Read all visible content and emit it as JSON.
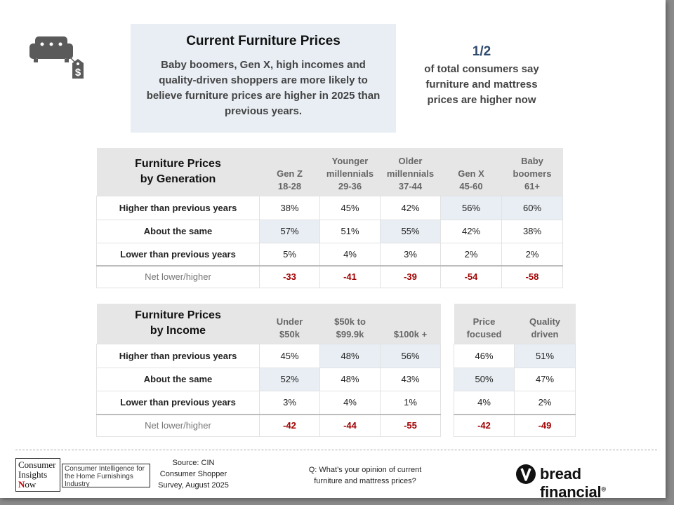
{
  "header": {
    "icon": "sofa-price-tag-icon",
    "title": "Current Furniture Prices",
    "description": "Baby boomers, Gen X, high incomes and quality-driven shoppers are more likely to believe furniture prices are higher in 2025 than previous years.",
    "stat_fraction": "1/2",
    "stat_text": "of total consumers say furniture and mattress prices are higher now"
  },
  "generation_table": {
    "title_line1": "Furniture Prices",
    "title_line2": "by Generation",
    "columns": [
      {
        "line1": "",
        "line2": "Gen Z",
        "line3": "18-28"
      },
      {
        "line1": "Younger",
        "line2": "millennials",
        "line3": "29-36"
      },
      {
        "line1": "Older",
        "line2": "millennials",
        "line3": "37-44"
      },
      {
        "line1": "",
        "line2": "Gen X",
        "line3": "45-60"
      },
      {
        "line1": "Baby",
        "line2": "boomers",
        "line3": "61+"
      }
    ],
    "rows": [
      {
        "label": "Higher than previous years",
        "values": [
          "38%",
          "45%",
          "42%",
          "56%",
          "60%"
        ]
      },
      {
        "label": "About the same",
        "values": [
          "57%",
          "51%",
          "55%",
          "42%",
          "38%"
        ]
      },
      {
        "label": "Lower than previous years",
        "values": [
          "5%",
          "4%",
          "3%",
          "2%",
          "2%"
        ]
      },
      {
        "label": "Net lower/higher",
        "values": [
          "-33",
          "-41",
          "-39",
          "-54",
          "-58"
        ]
      }
    ]
  },
  "income_table": {
    "title_line1": "Furniture Prices",
    "title_line2": "by Income",
    "columns": [
      {
        "line1": "Under",
        "line2": "$50k"
      },
      {
        "line1": "$50k to",
        "line2": "$99.9k"
      },
      {
        "line1": "",
        "line2": "$100k +"
      }
    ],
    "rows": [
      {
        "label": "Higher than previous years",
        "values": [
          "45%",
          "48%",
          "56%"
        ]
      },
      {
        "label": "About the same",
        "values": [
          "52%",
          "48%",
          "43%"
        ]
      },
      {
        "label": "Lower than previous years",
        "values": [
          "3%",
          "4%",
          "1%"
        ]
      },
      {
        "label": "Net lower/higher",
        "values": [
          "-42",
          "-44",
          "-55"
        ]
      }
    ]
  },
  "shopper_table": {
    "columns": [
      {
        "line1": "Price",
        "line2": "focused"
      },
      {
        "line1": "Quality",
        "line2": "driven"
      }
    ],
    "rows": [
      {
        "values": [
          "46%",
          "51%"
        ]
      },
      {
        "values": [
          "50%",
          "47%"
        ]
      },
      {
        "values": [
          "4%",
          "2%"
        ]
      },
      {
        "values": [
          "-42",
          "-49"
        ]
      }
    ]
  },
  "footer": {
    "cin_logo": {
      "line1": "Consumer",
      "line2": "Insights",
      "line3_initial": "N",
      "line3_rest": "ow",
      "tagline": "Consumer Intelligence for the Home Furnishings Industry"
    },
    "source_line1": "Source: CIN",
    "source_line2": "Consumer Shopper",
    "source_line3": "Survey, August 2025",
    "question_line1": "Q: What’s your opinion of current",
    "question_line2": "furniture and mattress prices?",
    "bread_logo_text": "bread financial",
    "bread_logo_mark": "®"
  },
  "colors": {
    "highlight": "#e8eef4",
    "header_gray": "#e6e6e6",
    "negative_red": "#a00000",
    "stat_blue": "#2e4a6e"
  }
}
